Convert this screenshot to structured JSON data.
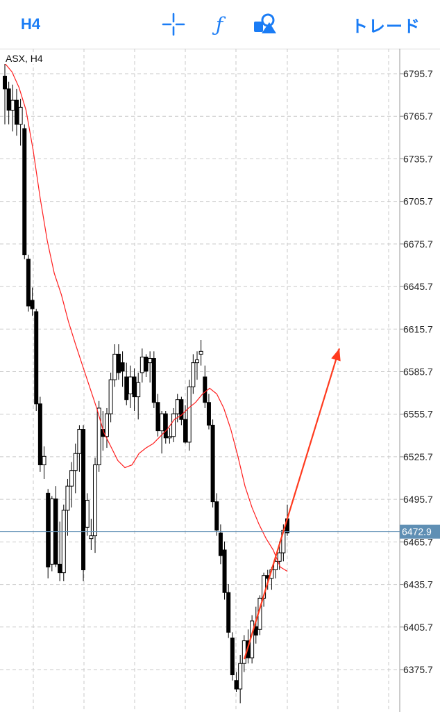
{
  "toolbar": {
    "timeframe": "H4",
    "crosshair_icon": "crosshair-icon",
    "indicators_icon": "function-icon",
    "objects_icon": "shapes-icon",
    "trade_label": "トレード",
    "accent_color": "#1a7cf5"
  },
  "chart_header": {
    "symbol_label": "ASX, H4"
  },
  "chart_data": {
    "type": "candlestick",
    "symbol": "ASX",
    "timeframe": "H4",
    "y_ticks": [
      "6795.7",
      "6765.7",
      "6735.7",
      "6705.7",
      "6675.7",
      "6645.7",
      "6615.7",
      "6585.7",
      "6555.7",
      "6525.7",
      "6495.7",
      "6465.7",
      "6435.7",
      "6405.7",
      "6375.7"
    ],
    "ylim": [
      6342,
      6810
    ],
    "grid": true,
    "current_price": 6472.9,
    "current_price_label": "6472.9",
    "colors": {
      "moving_average": "#ff1e1e",
      "arrow": "#ff3a1e",
      "price_line": "#5f8fb4",
      "price_label_bg": "#5f8fb4",
      "bull_body": "#ffffff",
      "bear_body": "#000000"
    },
    "candles": [
      [
        6794,
        6805,
        6760,
        6785
      ],
      [
        6785,
        6790,
        6760,
        6770
      ],
      [
        6770,
        6788,
        6755,
        6777
      ],
      [
        6777,
        6785,
        6752,
        6760
      ],
      [
        6760,
        6778,
        6745,
        6772
      ],
      [
        6757,
        6760,
        6665,
        6668
      ],
      [
        6665,
        6668,
        6628,
        6632
      ],
      [
        6636,
        6645,
        6625,
        6630
      ],
      [
        6628,
        6630,
        6558,
        6563
      ],
      [
        6563,
        6568,
        6515,
        6520
      ],
      [
        6520,
        6533,
        6510,
        6526
      ],
      [
        6500,
        6503,
        6440,
        6448
      ],
      [
        6450,
        6498,
        6445,
        6496
      ],
      [
        6496,
        6505,
        6448,
        6450
      ],
      [
        6450,
        6480,
        6438,
        6444
      ],
      [
        6444,
        6492,
        6438,
        6488
      ],
      [
        6488,
        6510,
        6470,
        6505
      ],
      [
        6505,
        6522,
        6490,
        6516
      ],
      [
        6516,
        6535,
        6500,
        6528
      ],
      [
        6528,
        6548,
        6515,
        6545
      ],
      [
        6545,
        6548,
        6438,
        6446
      ],
      [
        6476,
        6500,
        6470,
        6495
      ],
      [
        6468,
        6482,
        6460,
        6470
      ],
      [
        6470,
        6525,
        6458,
        6520
      ],
      [
        6520,
        6565,
        6515,
        6560
      ],
      [
        6545,
        6558,
        6530,
        6540
      ],
      [
        6540,
        6560,
        6532,
        6556
      ],
      [
        6556,
        6585,
        6550,
        6580
      ],
      [
        6580,
        6605,
        6575,
        6598
      ],
      [
        6598,
        6605,
        6580,
        6585
      ],
      [
        6592,
        6600,
        6575,
        6586
      ],
      [
        6582,
        6592,
        6562,
        6566
      ],
      [
        6570,
        6590,
        6560,
        6582
      ],
      [
        6582,
        6588,
        6558,
        6568
      ],
      [
        6568,
        6585,
        6552,
        6578
      ],
      [
        6585,
        6602,
        6578,
        6596
      ],
      [
        6596,
        6598,
        6582,
        6586
      ],
      [
        6592,
        6600,
        6578,
        6595
      ],
      [
        6595,
        6600,
        6560,
        6564
      ],
      [
        6564,
        6570,
        6540,
        6544
      ],
      [
        6544,
        6558,
        6528,
        6556
      ],
      [
        6556,
        6558,
        6535,
        6539
      ],
      [
        6539,
        6546,
        6535,
        6540
      ],
      [
        6540,
        6560,
        6536,
        6556
      ],
      [
        6556,
        6570,
        6550,
        6566
      ],
      [
        6566,
        6568,
        6548,
        6552
      ],
      [
        6552,
        6562,
        6535,
        6536
      ],
      [
        6536,
        6580,
        6530,
        6575
      ],
      [
        6575,
        6598,
        6570,
        6592
      ],
      [
        6592,
        6600,
        6580,
        6594
      ],
      [
        6598,
        6608,
        6590,
        6600
      ],
      [
        6582,
        6590,
        6560,
        6564
      ],
      [
        6564,
        6570,
        6545,
        6548
      ],
      [
        6548,
        6552,
        6490,
        6494
      ],
      [
        6494,
        6500,
        6470,
        6474
      ],
      [
        6472,
        6478,
        6450,
        6456
      ],
      [
        6460,
        6466,
        6425,
        6430
      ],
      [
        6430,
        6436,
        6398,
        6402
      ],
      [
        6398,
        6402,
        6368,
        6372
      ],
      [
        6368,
        6374,
        6360,
        6362
      ],
      [
        6362,
        6386,
        6352,
        6380
      ],
      [
        6380,
        6400,
        6374,
        6396
      ],
      [
        6396,
        6404,
        6380,
        6384
      ],
      [
        6384,
        6414,
        6380,
        6410
      ],
      [
        6406,
        6420,
        6394,
        6400
      ],
      [
        6404,
        6428,
        6400,
        6426
      ],
      [
        6426,
        6444,
        6420,
        6442
      ],
      [
        6442,
        6446,
        6432,
        6440
      ],
      [
        6440,
        6448,
        6432,
        6446
      ],
      [
        6446,
        6456,
        6440,
        6452
      ],
      [
        6452,
        6466,
        6446,
        6458
      ],
      [
        6458,
        6478,
        6452,
        6474
      ],
      [
        6482,
        6492,
        6470,
        6472
      ]
    ],
    "moving_average": [
      6803,
      6797,
      6786,
      6770,
      6742,
      6708,
      6678,
      6655,
      6640,
      6621,
      6605,
      6590,
      6575,
      6560,
      6543,
      6533,
      6523,
      6518,
      6520,
      6528,
      6532,
      6535,
      6540,
      6545,
      6552,
      6555,
      6560,
      6564,
      6570,
      6574,
      6570,
      6560,
      6545,
      6526,
      6505,
      6490,
      6478,
      6468,
      6460,
      6448,
      6445
    ],
    "trend_arrow": {
      "start_price": 6383,
      "end_price": 6602
    }
  }
}
